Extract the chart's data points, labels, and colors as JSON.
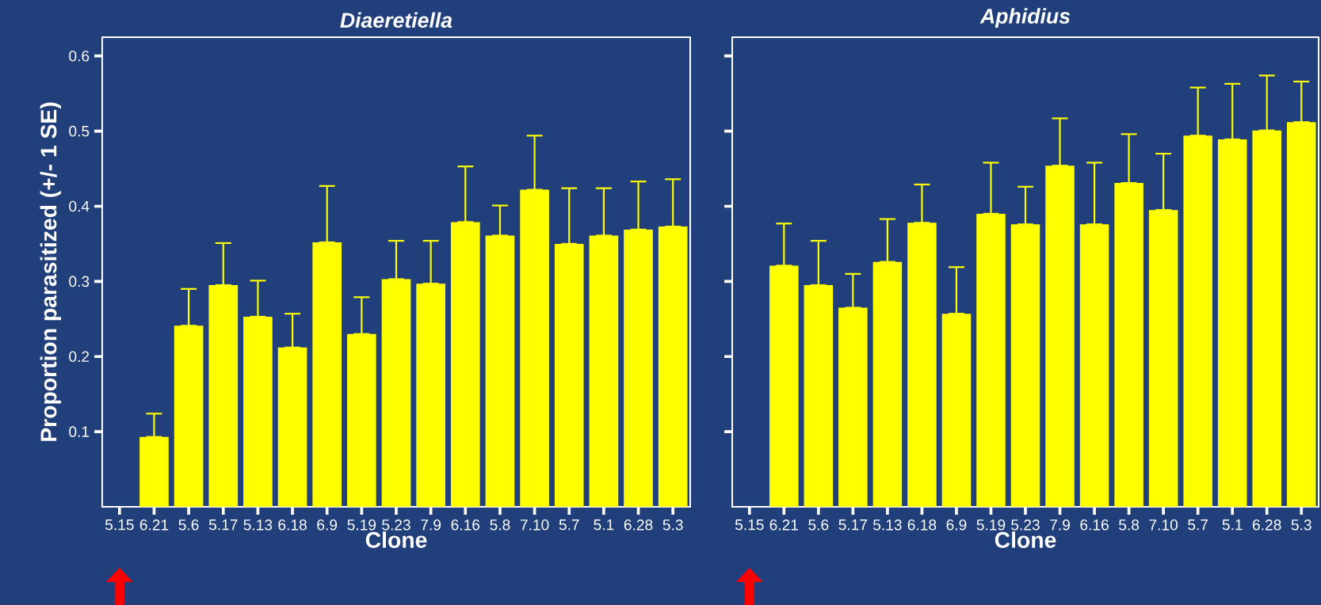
{
  "chart_data": [
    {
      "type": "bar",
      "title": "Diaeretiella",
      "xlabel": "Clone",
      "ylabel": "Proportion parasitized (+/- 1 SE)",
      "categories": [
        "5.15",
        "6.21",
        "5.6",
        "5.17",
        "5.13",
        "6.18",
        "6.9",
        "5.19",
        "5.23",
        "7.9",
        "6.16",
        "5.8",
        "7.10",
        "5.7",
        "5.1",
        "6.28",
        "5.3"
      ],
      "values": [
        0,
        0.093,
        0.241,
        0.295,
        0.253,
        0.212,
        0.352,
        0.23,
        0.303,
        0.297,
        0.379,
        0.361,
        0.422,
        0.35,
        0.361,
        0.369,
        0.373
      ],
      "errors": [
        null,
        [
          0.093,
          0.124
        ],
        [
          0.241,
          0.29
        ],
        [
          0.295,
          0.351
        ],
        [
          0.253,
          0.301
        ],
        [
          0.212,
          0.257
        ],
        [
          0.352,
          0.427
        ],
        [
          0.23,
          0.279
        ],
        [
          0.303,
          0.354
        ],
        [
          0.297,
          0.354
        ],
        [
          0.379,
          0.453
        ],
        [
          0.361,
          0.401
        ],
        [
          0.422,
          0.494
        ],
        [
          0.35,
          0.424
        ],
        [
          0.361,
          0.424
        ],
        [
          0.369,
          0.433
        ],
        [
          0.373,
          0.436
        ]
      ],
      "color": "#ffff00",
      "ylim": [
        0,
        0.625
      ],
      "yticks": [
        0.1,
        0.2,
        0.3,
        0.4,
        0.5,
        0.6
      ]
    },
    {
      "type": "bar",
      "title": "Aphidius",
      "xlabel": "Clone",
      "categories": [
        "5.15",
        "6.21",
        "5.6",
        "5.17",
        "5.13",
        "6.18",
        "6.9",
        "5.19",
        "5.23",
        "7.9",
        "6.16",
        "5.8",
        "7.10",
        "5.7",
        "5.1",
        "6.28",
        "5.3"
      ],
      "values": [
        0,
        0.321,
        0.295,
        0.265,
        0.326,
        0.378,
        0.257,
        0.39,
        0.376,
        0.454,
        0.376,
        0.431,
        0.395,
        0.494,
        0.489,
        0.501,
        0.512
      ],
      "errors": [
        null,
        [
          0.321,
          0.377
        ],
        [
          0.295,
          0.354
        ],
        [
          0.265,
          0.31
        ],
        [
          0.326,
          0.383
        ],
        [
          0.378,
          0.429
        ],
        [
          0.257,
          0.319
        ],
        [
          0.39,
          0.458
        ],
        [
          0.376,
          0.426
        ],
        [
          0.454,
          0.517
        ],
        [
          0.376,
          0.458
        ],
        [
          0.431,
          0.496
        ],
        [
          0.395,
          0.47
        ],
        [
          0.494,
          0.558
        ],
        [
          0.489,
          0.563
        ],
        [
          0.501,
          0.574
        ],
        [
          0.512,
          0.566
        ]
      ],
      "color": "#ffff00",
      "ylim": [
        0,
        0.625
      ],
      "yticks": [
        0.1,
        0.2,
        0.3,
        0.4,
        0.5,
        0.6
      ],
      "tick_labels": "x"
    }
  ]
}
